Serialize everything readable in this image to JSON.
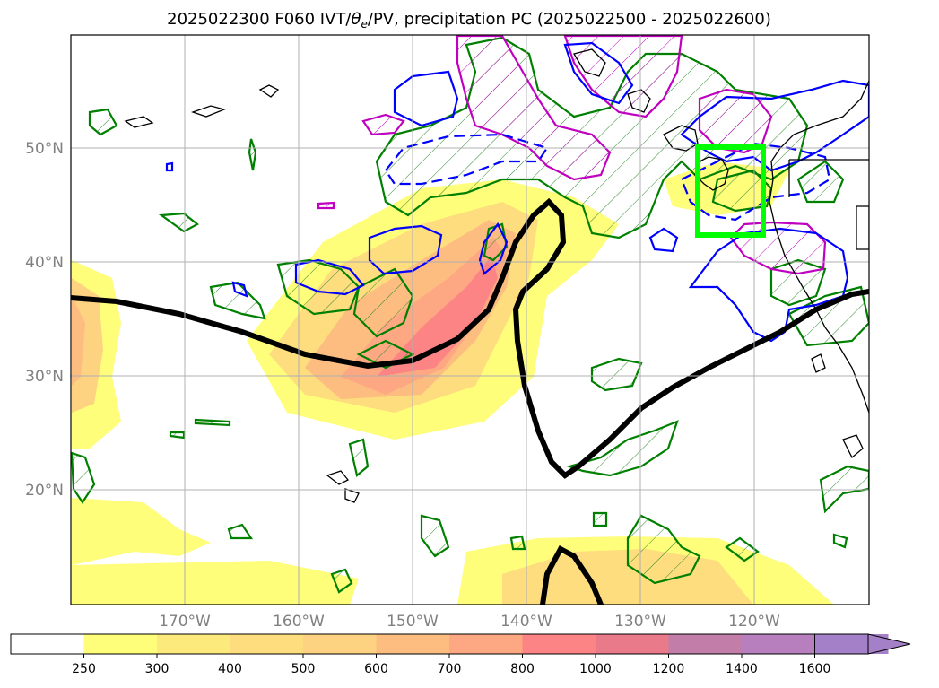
{
  "title": {
    "prefix": "2025022300 F060 IVT/",
    "theta": "θ",
    "theta_sub": "e",
    "suffix": "/PV, precipitation PC (2025022500 - 2025022600)"
  },
  "map": {
    "lat_labels": [
      "50°N",
      "40°N",
      "30°N",
      "20°N"
    ],
    "lon_labels": [
      "170°W",
      "160°W",
      "150°W",
      "140°W",
      "130°W",
      "120°W"
    ],
    "lat_values": [
      50,
      40,
      30,
      20
    ],
    "lon_values": [
      -170,
      -160,
      -150,
      -140,
      -130,
      -120
    ],
    "extent": {
      "lon_min": -180,
      "lon_max": -110,
      "lat_min": 10,
      "lat_max": 60
    },
    "grid": true,
    "target_box_color": "#00ff00",
    "contour_colors": {
      "theta_e": "#0000ff",
      "pv": "#c000c0",
      "precip_pc": "#008000",
      "ivt_axis": "#000000"
    }
  },
  "colorbar": {
    "levels": [
      "250",
      "300",
      "400",
      "500",
      "600",
      "700",
      "800",
      "1000",
      "1200",
      "1400",
      "1600"
    ],
    "colors": [
      "#ffffff",
      "#fefe7a",
      "#fdea7c",
      "#fddd7e",
      "#fdd280",
      "#fdbd80",
      "#fda882",
      "#fc8484",
      "#e87a8a",
      "#c27ea9",
      "#b87fbe",
      "#a480c8"
    ],
    "extend": "max"
  }
}
